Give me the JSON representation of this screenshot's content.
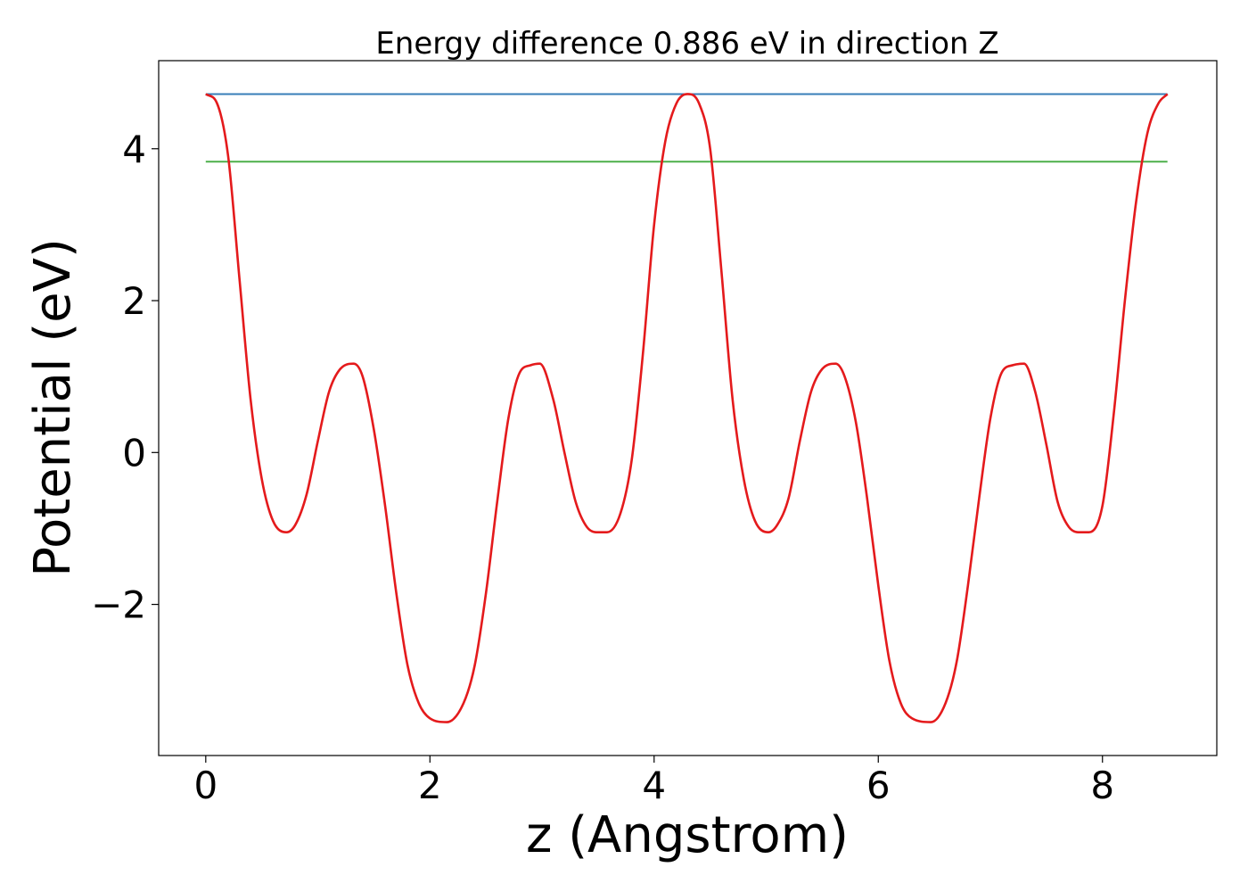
{
  "chart_data": {
    "type": "line",
    "title": "Energy difference 0.886 eV in direction Z",
    "xlabel": "z (Angstrom)",
    "ylabel": "Potential (eV)",
    "xlim": [
      -0.42,
      9.02
    ],
    "ylim": [
      -3.99,
      5.16
    ],
    "xticks": [
      0,
      2,
      4,
      6,
      8
    ],
    "xtick_labels": [
      "0",
      "2",
      "4",
      "6",
      "8"
    ],
    "yticks": [
      -2,
      0,
      2,
      4
    ],
    "ytick_labels": [
      "−2",
      "0",
      "2",
      "4"
    ],
    "grid": false,
    "series": [
      {
        "color": "#e41a1c",
        "x": [
          0,
          0.1,
          0.2,
          0.3,
          0.4,
          0.5,
          0.6,
          0.72,
          0.8,
          0.9,
          1.0,
          1.1,
          1.2,
          1.32,
          1.4,
          1.5,
          1.6,
          1.7,
          1.8,
          1.9,
          2.0,
          2.15,
          2.3,
          2.4,
          2.5,
          2.6,
          2.7,
          2.8,
          2.9,
          2.98,
          3.1,
          3.2,
          3.3,
          3.4,
          3.5,
          3.58,
          3.7,
          3.8,
          3.9,
          4.0,
          4.1,
          4.2,
          4.3,
          4.4,
          4.5,
          4.6,
          4.7,
          4.8,
          4.9,
          5.02,
          5.1,
          5.2,
          5.3,
          5.4,
          5.5,
          5.62,
          5.7,
          5.8,
          5.9,
          6.0,
          6.1,
          6.2,
          6.3,
          6.47,
          6.6,
          6.7,
          6.8,
          6.9,
          7.0,
          7.1,
          7.2,
          7.3,
          7.4,
          7.5,
          7.6,
          7.7,
          7.8,
          7.88,
          8.0,
          8.1,
          8.2,
          8.3,
          8.4,
          8.5,
          8.58
        ],
        "y": [
          4.72,
          4.6,
          3.9,
          2.3,
          0.7,
          -0.35,
          -0.9,
          -1.05,
          -0.95,
          -0.55,
          0.15,
          0.8,
          1.1,
          1.17,
          1.0,
          0.3,
          -0.7,
          -1.85,
          -2.8,
          -3.3,
          -3.5,
          -3.55,
          -3.3,
          -2.8,
          -1.85,
          -0.65,
          0.45,
          1.05,
          1.15,
          1.17,
          0.7,
          0.0,
          -0.65,
          -0.98,
          -1.05,
          -1.05,
          -0.8,
          -0.1,
          1.3,
          3.0,
          4.1,
          4.6,
          4.72,
          4.6,
          4.0,
          2.4,
          0.7,
          -0.35,
          -0.9,
          -1.05,
          -0.95,
          -0.6,
          0.15,
          0.8,
          1.1,
          1.17,
          1.0,
          0.4,
          -0.6,
          -1.75,
          -2.75,
          -3.3,
          -3.5,
          -3.55,
          -3.3,
          -2.75,
          -1.75,
          -0.6,
          0.45,
          1.05,
          1.15,
          1.17,
          0.8,
          0.1,
          -0.65,
          -0.98,
          -1.05,
          -1.05,
          -0.7,
          0.5,
          2.0,
          3.3,
          4.2,
          4.6,
          4.72
        ]
      },
      {
        "color": "#377eb8",
        "x": [
          0,
          8.58
        ],
        "y": [
          4.72,
          4.72
        ]
      },
      {
        "color": "#4daf4a",
        "x": [
          0,
          8.58
        ],
        "y": [
          3.83,
          3.83
        ]
      }
    ]
  }
}
